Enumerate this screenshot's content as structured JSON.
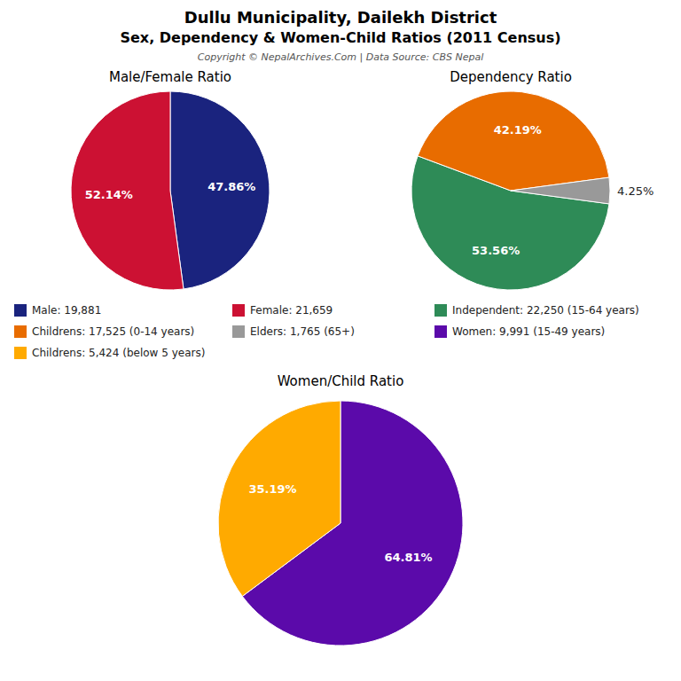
{
  "title": "Dullu Municipality, Dailekh District",
  "subtitle": "Sex, Dependency & Women-Child Ratios (2011 Census)",
  "annotations": [
    "Copyright © NepalArchives.Com | Data Source: CBS Nepal"
  ],
  "chart_data": [
    {
      "type": "pie",
      "title": "Male/Female Ratio",
      "categories": [
        "Male: 19,881",
        "Female: 21,659"
      ],
      "values": [
        47.86,
        52.14
      ],
      "value_labels": [
        "47.86%",
        "52.14%"
      ],
      "colors": [
        "#1a237e",
        "#cc1133"
      ],
      "data_labels": true,
      "legend": "center"
    },
    {
      "type": "pie",
      "title": "Dependency Ratio",
      "categories": [
        "Independent: 22,250 (15-64 years)",
        "Childrens: 17,525 (0-14 years)",
        "Elders: 1,765 (65+)"
      ],
      "values": [
        53.56,
        42.19,
        4.25
      ],
      "value_labels": [
        "53.56%",
        "42.19%",
        "4.25%"
      ],
      "colors": [
        "#2e8b57",
        "#e86c00",
        "#999999"
      ],
      "data_labels": true,
      "legend": "center"
    },
    {
      "type": "pie",
      "title": "Women/Child Ratio",
      "categories": [
        "Women: 9,991 (15-49 years)",
        "Childrens: 5,424 (below 5 years)"
      ],
      "values": [
        64.81,
        35.19
      ],
      "value_labels": [
        "64.81%",
        "35.19%"
      ],
      "colors": [
        "#5b0aaa",
        "#ffaa00"
      ],
      "data_labels": true,
      "legend": "center"
    }
  ]
}
